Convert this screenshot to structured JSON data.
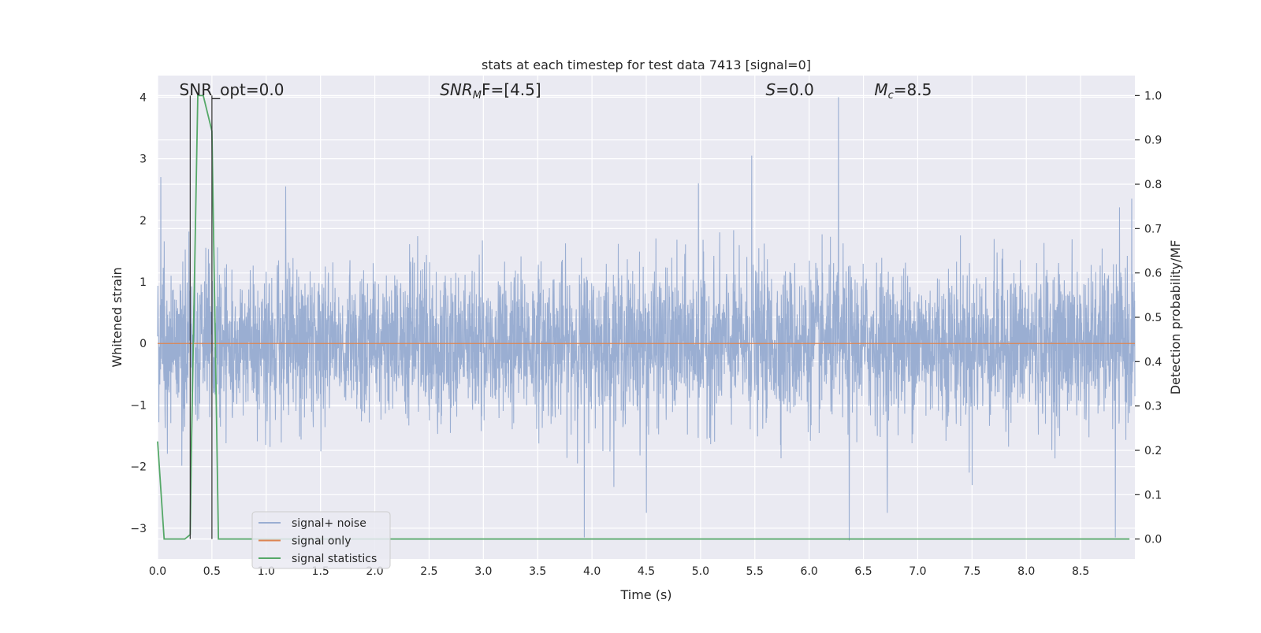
{
  "chart_data": {
    "type": "line",
    "title": "stats at each timestep for test data 7413 [signal=0]",
    "xlabel": "Time (s)",
    "ylabel_left": "Whitened strain",
    "ylabel_right": "Detection probability/MF",
    "xlim": [
      0.0,
      9.0
    ],
    "ylim_left": [
      -3.5,
      4.35
    ],
    "ylim_right": [
      -0.045,
      1.045
    ],
    "x_ticks": [
      "0.0",
      "0.5",
      "1.0",
      "1.5",
      "2.0",
      "2.5",
      "3.0",
      "3.5",
      "4.0",
      "4.5",
      "5.0",
      "5.5",
      "6.0",
      "6.5",
      "7.0",
      "7.5",
      "8.0",
      "8.5"
    ],
    "y_ticks_left": [
      "4",
      "3",
      "2",
      "1",
      "0",
      "−1",
      "−2",
      "−3"
    ],
    "y_ticks_right": [
      "1.0",
      "0.9",
      "0.8",
      "0.7",
      "0.6",
      "0.5",
      "0.4",
      "0.3",
      "0.2",
      "0.1",
      "0.0"
    ],
    "grid": true,
    "annotations": [
      {
        "x": 0.2,
        "label": "SNR_opt=0.0",
        "math": false
      },
      {
        "x": 2.6,
        "label_main": "SNR",
        "label_sub": "M",
        "label_rest": "F=[4.5]",
        "math": true
      },
      {
        "x": 5.6,
        "label_main": "S",
        "label_sub": "",
        "label_rest": "=0.0",
        "math": true
      },
      {
        "x": 6.6,
        "label_main": "M",
        "label_sub": "c",
        "label_rest": "=8.5",
        "math": true
      }
    ],
    "vlines_x": [
      0.3,
      0.5
    ],
    "legend": {
      "placement": "lower-left",
      "entries": [
        {
          "label": "signal+ noise",
          "color": "#9aaed2"
        },
        {
          "label": "signal only",
          "color": "#dd8452"
        },
        {
          "label": "signal statistics",
          "color": "#55a868"
        }
      ]
    },
    "series": [
      {
        "name": "signal+ noise",
        "axis": "left",
        "kind": "noise",
        "sigma": 0.62,
        "spikes": [
          {
            "x": 0.03,
            "y": 2.7
          },
          {
            "x": 1.18,
            "y": 2.55
          },
          {
            "x": 3.93,
            "y": -3.15
          },
          {
            "x": 4.98,
            "y": 2.6
          },
          {
            "x": 5.47,
            "y": 3.05
          },
          {
            "x": 6.27,
            "y": 4.0
          },
          {
            "x": 6.37,
            "y": -3.2
          },
          {
            "x": 4.5,
            "y": -2.75
          },
          {
            "x": 7.5,
            "y": -2.3
          },
          {
            "x": 8.82,
            "y": -3.15
          },
          {
            "x": 6.72,
            "y": -2.75
          },
          {
            "x": 8.97,
            "y": 2.35
          }
        ]
      },
      {
        "name": "signal only",
        "axis": "left",
        "kind": "constant",
        "value": 0.0
      },
      {
        "name": "signal statistics",
        "axis": "right",
        "kind": "line",
        "x": [
          0.0,
          0.06,
          0.1,
          0.25,
          0.3,
          0.31,
          0.37,
          0.42,
          0.5,
          0.56,
          8.95
        ],
        "y": [
          0.22,
          0.0,
          0.0,
          0.0,
          0.01,
          0.19,
          1.0,
          1.0,
          0.92,
          0.0,
          0.0
        ]
      }
    ]
  }
}
